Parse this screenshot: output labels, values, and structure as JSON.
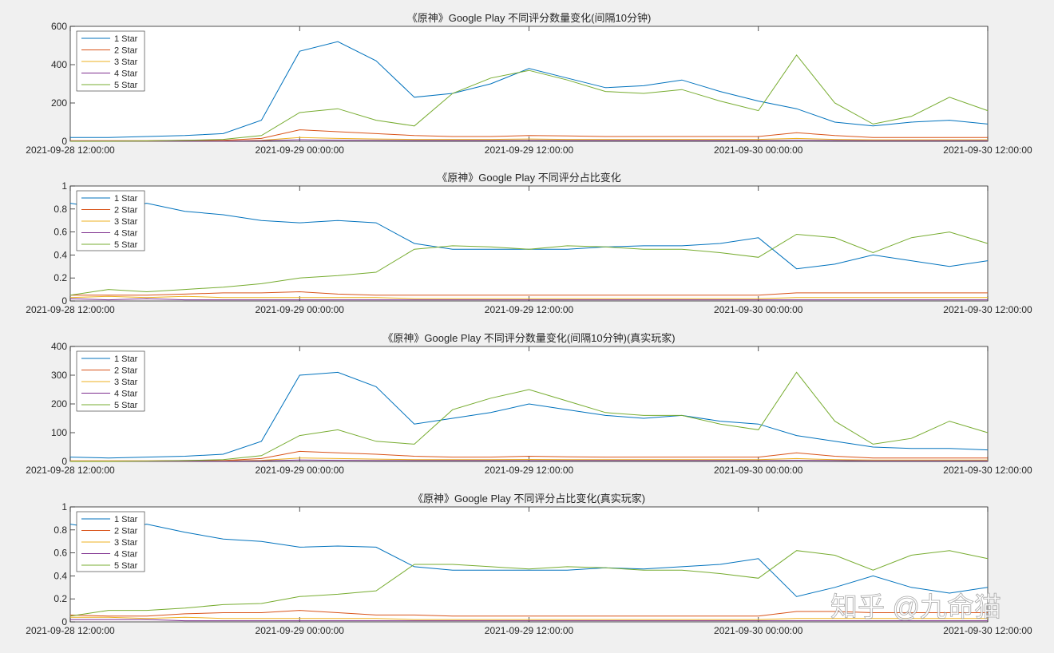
{
  "colors": {
    "1 Star": "#0072BD",
    "2 Star": "#D95319",
    "3 Star": "#EDB120",
    "4 Star": "#7E2F8E",
    "5 Star": "#77AC30"
  },
  "watermark": "知乎 @九命猫",
  "chart_data": [
    {
      "type": "line",
      "title": "《原神》Google Play 不同评分数量变化(间隔10分钟)",
      "x_hours_from_start": [
        0,
        2,
        4,
        6,
        8,
        10,
        12,
        14,
        16,
        18,
        20,
        22,
        24,
        26,
        28,
        30,
        32,
        34,
        36,
        38,
        40,
        42,
        44,
        46,
        48
      ],
      "xticks": {
        "hours": [
          0,
          12,
          24,
          36,
          48
        ],
        "labels": [
          "2021-09-28 12:00:00",
          "2021-09-29 00:00:00",
          "2021-09-29 12:00:00",
          "2021-09-30 00:00:00",
          "2021-09-30 12:00:00"
        ]
      },
      "ylim": [
        0,
        600
      ],
      "yticks": [
        "0",
        "200",
        "400",
        "600"
      ],
      "legend": "top-left",
      "series": [
        {
          "name": "1 Star",
          "values": [
            20,
            20,
            25,
            30,
            40,
            110,
            470,
            520,
            420,
            230,
            250,
            300,
            380,
            330,
            280,
            290,
            320,
            260,
            210,
            170,
            100,
            80,
            100,
            110,
            90
          ]
        },
        {
          "name": "2 Star",
          "values": [
            3,
            3,
            3,
            5,
            5,
            15,
            60,
            50,
            40,
            30,
            25,
            25,
            30,
            28,
            25,
            25,
            25,
            25,
            25,
            45,
            30,
            20,
            20,
            20,
            20
          ]
        },
        {
          "name": "3 Star",
          "values": [
            1,
            1,
            1,
            2,
            2,
            5,
            20,
            15,
            12,
            10,
            10,
            10,
            12,
            10,
            10,
            10,
            10,
            10,
            10,
            15,
            10,
            8,
            8,
            8,
            8
          ]
        },
        {
          "name": "4 Star",
          "values": [
            1,
            1,
            1,
            1,
            1,
            3,
            8,
            6,
            5,
            4,
            4,
            4,
            5,
            4,
            4,
            4,
            4,
            4,
            4,
            6,
            4,
            3,
            3,
            3,
            3
          ]
        },
        {
          "name": "5 Star",
          "values": [
            0,
            0,
            2,
            5,
            10,
            30,
            150,
            170,
            110,
            80,
            250,
            330,
            370,
            320,
            260,
            250,
            270,
            210,
            160,
            450,
            200,
            90,
            130,
            230,
            160
          ]
        }
      ]
    },
    {
      "type": "line",
      "title": "《原神》Google Play 不同评分占比变化",
      "x_hours_from_start": [
        0,
        2,
        4,
        6,
        8,
        10,
        12,
        14,
        16,
        18,
        20,
        22,
        24,
        26,
        28,
        30,
        32,
        34,
        36,
        38,
        40,
        42,
        44,
        46,
        48
      ],
      "xticks": {
        "hours": [
          0,
          12,
          24,
          36,
          48
        ],
        "labels": [
          "2021-09-28 12:00:00",
          "2021-09-29 00:00:00",
          "2021-09-29 12:00:00",
          "2021-09-30 00:00:00",
          "2021-09-30 12:00:00"
        ]
      },
      "ylim": [
        0,
        1
      ],
      "yticks": [
        "0",
        "0.2",
        "0.4",
        "0.6",
        "0.8",
        "1"
      ],
      "legend": "top-left",
      "series": [
        {
          "name": "1 Star",
          "values": [
            0.85,
            0.8,
            0.85,
            0.78,
            0.75,
            0.7,
            0.68,
            0.7,
            0.68,
            0.5,
            0.45,
            0.45,
            0.45,
            0.45,
            0.47,
            0.48,
            0.48,
            0.5,
            0.55,
            0.28,
            0.32,
            0.4,
            0.35,
            0.3,
            0.35
          ]
        },
        {
          "name": "2 Star",
          "values": [
            0.05,
            0.05,
            0.05,
            0.06,
            0.07,
            0.07,
            0.08,
            0.06,
            0.05,
            0.05,
            0.05,
            0.05,
            0.05,
            0.05,
            0.05,
            0.05,
            0.05,
            0.05,
            0.05,
            0.07,
            0.07,
            0.07,
            0.07,
            0.07,
            0.07
          ]
        },
        {
          "name": "3 Star",
          "values": [
            0.03,
            0.04,
            0.03,
            0.04,
            0.03,
            0.03,
            0.03,
            0.03,
            0.03,
            0.02,
            0.02,
            0.02,
            0.02,
            0.02,
            0.02,
            0.02,
            0.02,
            0.02,
            0.02,
            0.03,
            0.03,
            0.03,
            0.03,
            0.03,
            0.03
          ]
        },
        {
          "name": "4 Star",
          "values": [
            0.02,
            0.01,
            0.02,
            0.01,
            0.01,
            0.01,
            0.01,
            0.01,
            0.01,
            0.01,
            0.01,
            0.01,
            0.01,
            0.01,
            0.01,
            0.01,
            0.01,
            0.01,
            0.01,
            0.01,
            0.01,
            0.01,
            0.01,
            0.01,
            0.01
          ]
        },
        {
          "name": "5 Star",
          "values": [
            0.05,
            0.1,
            0.08,
            0.1,
            0.12,
            0.15,
            0.2,
            0.22,
            0.25,
            0.45,
            0.48,
            0.47,
            0.45,
            0.48,
            0.47,
            0.45,
            0.45,
            0.42,
            0.38,
            0.58,
            0.55,
            0.42,
            0.55,
            0.6,
            0.5
          ]
        }
      ]
    },
    {
      "type": "line",
      "title": "《原神》Google Play 不同评分数量变化(间隔10分钟)(真实玩家)",
      "x_hours_from_start": [
        0,
        2,
        4,
        6,
        8,
        10,
        12,
        14,
        16,
        18,
        20,
        22,
        24,
        26,
        28,
        30,
        32,
        34,
        36,
        38,
        40,
        42,
        44,
        46,
        48
      ],
      "xticks": {
        "hours": [
          0,
          12,
          24,
          36,
          48
        ],
        "labels": [
          "2021-09-28 12:00:00",
          "2021-09-29 00:00:00",
          "2021-09-29 12:00:00",
          "2021-09-30 00:00:00",
          "2021-09-30 12:00:00"
        ]
      },
      "ylim": [
        0,
        400
      ],
      "yticks": [
        "0",
        "100",
        "200",
        "300",
        "400"
      ],
      "legend": "top-left",
      "series": [
        {
          "name": "1 Star",
          "values": [
            15,
            12,
            15,
            18,
            25,
            70,
            300,
            310,
            260,
            130,
            150,
            170,
            200,
            180,
            160,
            150,
            160,
            140,
            130,
            90,
            70,
            50,
            45,
            45,
            40
          ]
        },
        {
          "name": "2 Star",
          "values": [
            2,
            2,
            2,
            3,
            3,
            10,
            35,
            30,
            25,
            18,
            15,
            15,
            18,
            16,
            15,
            15,
            15,
            15,
            15,
            30,
            18,
            12,
            12,
            12,
            12
          ]
        },
        {
          "name": "3 Star",
          "values": [
            1,
            1,
            1,
            1,
            2,
            4,
            12,
            10,
            8,
            6,
            6,
            6,
            7,
            6,
            6,
            6,
            6,
            6,
            6,
            10,
            6,
            5,
            5,
            5,
            5
          ]
        },
        {
          "name": "4 Star",
          "values": [
            0,
            0,
            0,
            1,
            1,
            2,
            5,
            4,
            3,
            3,
            3,
            3,
            3,
            3,
            3,
            3,
            3,
            3,
            3,
            4,
            3,
            2,
            2,
            2,
            2
          ]
        },
        {
          "name": "5 Star",
          "values": [
            0,
            0,
            1,
            3,
            6,
            20,
            90,
            110,
            70,
            60,
            180,
            220,
            250,
            210,
            170,
            160,
            160,
            130,
            110,
            310,
            140,
            60,
            80,
            140,
            100
          ]
        }
      ]
    },
    {
      "type": "line",
      "title": "《原神》Google Play 不同评分占比变化(真实玩家)",
      "x_hours_from_start": [
        0,
        2,
        4,
        6,
        8,
        10,
        12,
        14,
        16,
        18,
        20,
        22,
        24,
        26,
        28,
        30,
        32,
        34,
        36,
        38,
        40,
        42,
        44,
        46,
        48
      ],
      "xticks": {
        "hours": [
          0,
          12,
          24,
          36,
          48
        ],
        "labels": [
          "2021-09-28 12:00:00",
          "2021-09-29 00:00:00",
          "2021-09-29 12:00:00",
          "2021-09-30 00:00:00",
          "2021-09-30 12:00:00"
        ]
      },
      "ylim": [
        0,
        1
      ],
      "yticks": [
        "0",
        "0.2",
        "0.4",
        "0.6",
        "0.8",
        "1"
      ],
      "legend": "top-left",
      "series": [
        {
          "name": "1 Star",
          "values": [
            0.85,
            0.8,
            0.85,
            0.78,
            0.72,
            0.7,
            0.65,
            0.66,
            0.65,
            0.48,
            0.45,
            0.45,
            0.45,
            0.45,
            0.47,
            0.46,
            0.48,
            0.5,
            0.55,
            0.22,
            0.3,
            0.4,
            0.3,
            0.25,
            0.3
          ]
        },
        {
          "name": "2 Star",
          "values": [
            0.06,
            0.05,
            0.05,
            0.07,
            0.08,
            0.08,
            0.1,
            0.08,
            0.06,
            0.06,
            0.05,
            0.05,
            0.05,
            0.05,
            0.05,
            0.05,
            0.05,
            0.05,
            0.05,
            0.09,
            0.09,
            0.08,
            0.08,
            0.08,
            0.08
          ]
        },
        {
          "name": "3 Star",
          "values": [
            0.04,
            0.04,
            0.03,
            0.04,
            0.03,
            0.03,
            0.03,
            0.03,
            0.03,
            0.02,
            0.02,
            0.02,
            0.02,
            0.02,
            0.02,
            0.02,
            0.02,
            0.02,
            0.02,
            0.03,
            0.03,
            0.03,
            0.03,
            0.03,
            0.03
          ]
        },
        {
          "name": "4 Star",
          "values": [
            0.02,
            0.02,
            0.02,
            0.01,
            0.01,
            0.01,
            0.01,
            0.01,
            0.01,
            0.01,
            0.01,
            0.01,
            0.01,
            0.01,
            0.01,
            0.01,
            0.01,
            0.01,
            0.01,
            0.01,
            0.01,
            0.01,
            0.01,
            0.01,
            0.01
          ]
        },
        {
          "name": "5 Star",
          "values": [
            0.05,
            0.1,
            0.1,
            0.12,
            0.15,
            0.16,
            0.22,
            0.24,
            0.27,
            0.5,
            0.5,
            0.48,
            0.46,
            0.48,
            0.47,
            0.45,
            0.45,
            0.42,
            0.38,
            0.62,
            0.58,
            0.45,
            0.58,
            0.62,
            0.55
          ]
        }
      ]
    }
  ]
}
